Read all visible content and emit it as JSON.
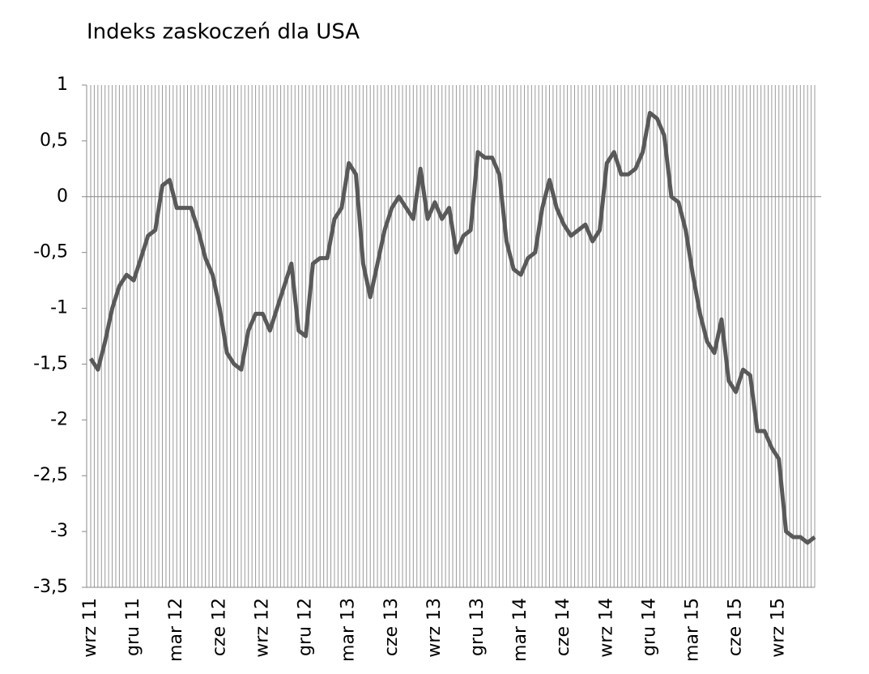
{
  "chart_data": {
    "type": "line",
    "title": "Indeks zaskoczeń dla USA",
    "categories": [
      "wrz 11",
      null,
      null,
      null,
      null,
      null,
      "gru 11",
      null,
      null,
      null,
      null,
      null,
      "mar 12",
      null,
      null,
      null,
      null,
      null,
      "cze 12",
      null,
      null,
      null,
      null,
      null,
      "wrz 12",
      null,
      null,
      null,
      null,
      null,
      "gru 12",
      null,
      null,
      null,
      null,
      null,
      "mar 13",
      null,
      null,
      null,
      null,
      null,
      "cze 13",
      null,
      null,
      null,
      null,
      null,
      "wrz 13",
      null,
      null,
      null,
      null,
      null,
      "gru 13",
      null,
      null,
      null,
      null,
      null,
      "mar 14",
      null,
      null,
      null,
      null,
      null,
      "cze 14",
      null,
      null,
      null,
      null,
      null,
      "wrz 14",
      null,
      null,
      null,
      null,
      null,
      "gru 14",
      null,
      null,
      null,
      null,
      null,
      "mar 15",
      null,
      null,
      null,
      null,
      null,
      "cze 15",
      null,
      null,
      null,
      null,
      null,
      "wrz 15",
      null,
      null,
      null,
      null,
      null
    ],
    "series": [
      {
        "color": "#595959",
        "values": [
          -1.45,
          -1.55,
          -1.3,
          -1.0,
          -0.8,
          -0.7,
          -0.75,
          -0.55,
          -0.35,
          -0.3,
          0.1,
          0.15,
          -0.1,
          -0.1,
          -0.1,
          -0.3,
          -0.55,
          -0.7,
          -1.0,
          -1.4,
          -1.5,
          -1.55,
          -1.2,
          -1.05,
          -1.05,
          -1.2,
          -1.0,
          -0.8,
          -0.6,
          -1.2,
          -1.25,
          -0.6,
          -0.55,
          -0.55,
          -0.2,
          -0.1,
          0.3,
          0.2,
          -0.6,
          -0.9,
          -0.6,
          -0.3,
          -0.1,
          0.0,
          -0.1,
          -0.2,
          0.25,
          -0.2,
          -0.05,
          -0.2,
          -0.1,
          -0.5,
          -0.35,
          -0.3,
          0.4,
          0.35,
          0.35,
          0.2,
          -0.4,
          -0.65,
          -0.7,
          -0.55,
          -0.5,
          -0.1,
          0.15,
          -0.1,
          -0.25,
          -0.35,
          -0.3,
          -0.25,
          -0.4,
          -0.3,
          0.3,
          0.4,
          0.2,
          0.2,
          0.25,
          0.4,
          0.75,
          0.7,
          0.55,
          0.0,
          -0.05,
          -0.3,
          -0.7,
          -1.05,
          -1.3,
          -1.4,
          -1.1,
          -1.65,
          -1.75,
          -1.55,
          -1.6,
          -2.1,
          -2.1,
          -2.25,
          -2.35,
          -3.0,
          -3.05,
          -3.05,
          -3.1,
          -3.05
        ]
      }
    ],
    "ylim": [
      -3.5,
      1
    ],
    "yticks": [
      1,
      {
        "value": 0.5,
        "label": "0,5"
      },
      0,
      {
        "value": -0.5,
        "label": "-0,5"
      },
      -1,
      {
        "value": -1.5,
        "label": "-1,5"
      },
      -2,
      {
        "value": -2.5,
        "label": "-2,5"
      },
      -3,
      {
        "value": -3.5,
        "label": "-3,5"
      }
    ],
    "grid": true
  }
}
